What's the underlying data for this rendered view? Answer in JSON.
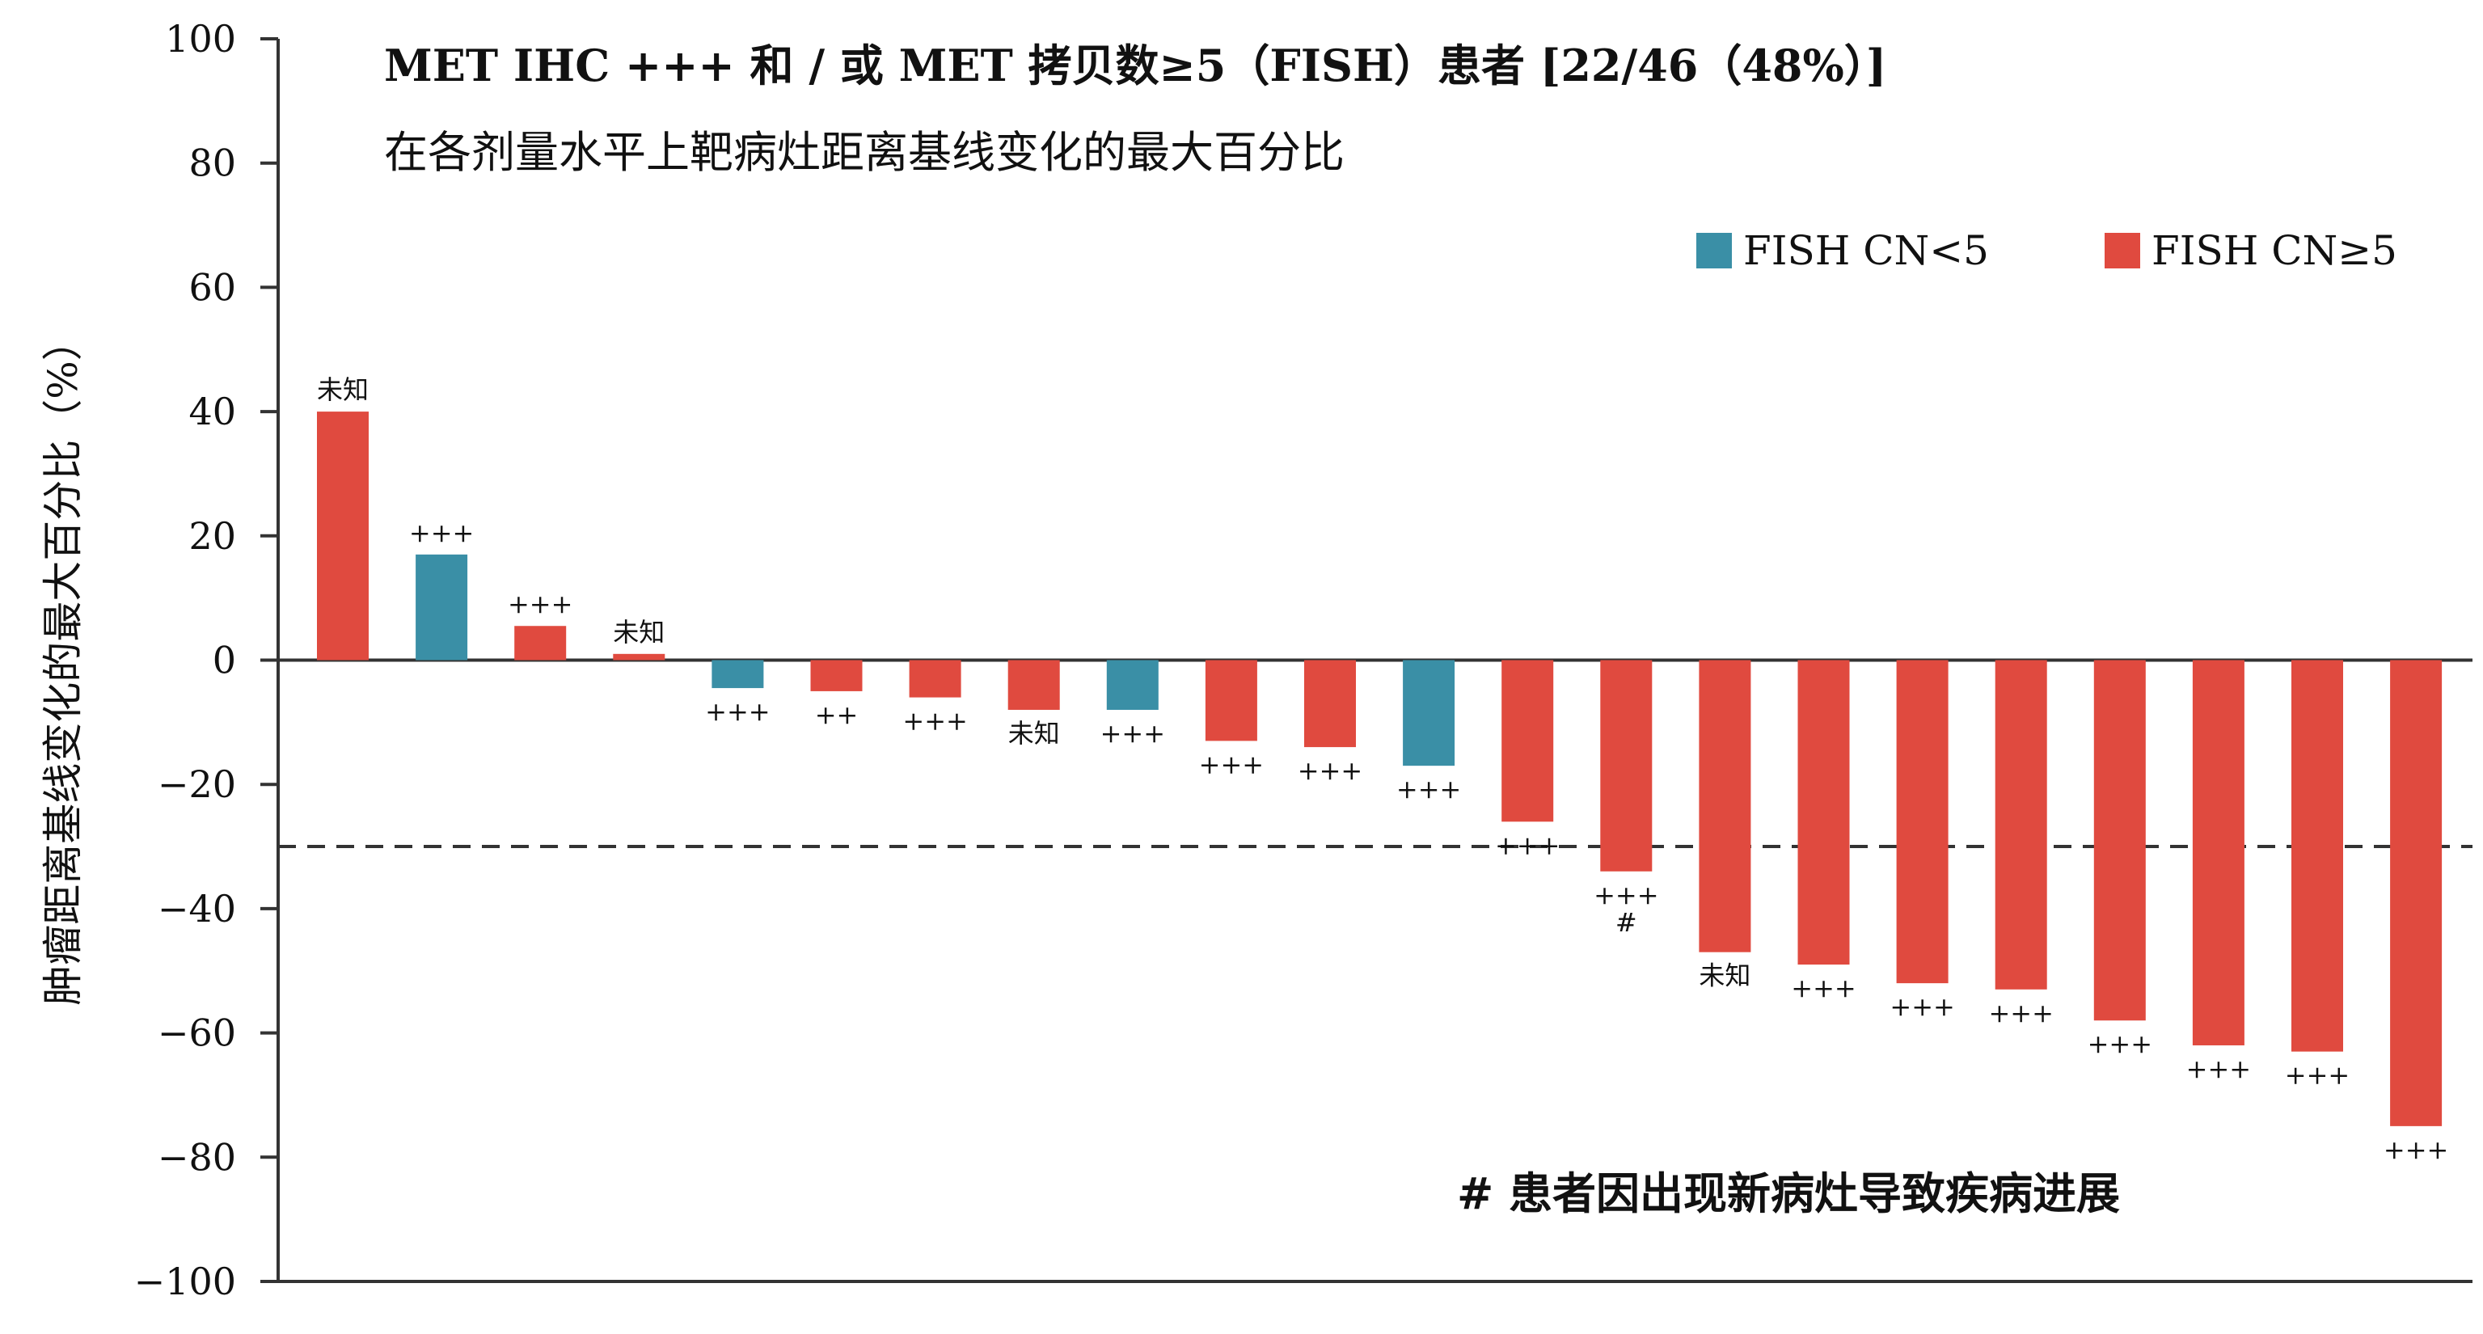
{
  "chart_data": {
    "type": "bar",
    "title": "MET IHC +++ 和 / 或 MET 拷贝数≥5（FISH）患者 [22/46（48%）]",
    "subtitle": "在各剂量水平上靶病灶距离基线变化的最大百分比",
    "ylabel": "肿瘤距离基线变化的最大百分比（%）",
    "xlabel": "",
    "ylim": [
      -100,
      100
    ],
    "yticks": [
      100,
      80,
      60,
      40,
      20,
      0,
      -20,
      -40,
      -60,
      -80,
      -100
    ],
    "ytick_labels": [
      "100",
      "80",
      "60",
      "40",
      "20",
      "0",
      "−20",
      "−40",
      "−60",
      "−80",
      "−100"
    ],
    "reference_line": -30,
    "legend": {
      "placement": "top-right",
      "items": [
        {
          "label": "FISH CN<5",
          "color": "#3a8fa6"
        },
        {
          "label": "FISH CN≥5",
          "color": "#e04a3f"
        }
      ]
    },
    "footnote": "# 患者因出现新病灶导致疾病进展",
    "bars": [
      {
        "value": 40,
        "group": "FISH CN≥5",
        "labels": [
          "未知"
        ]
      },
      {
        "value": 17,
        "group": "FISH CN<5",
        "labels": [
          "+++"
        ]
      },
      {
        "value": 5.5,
        "group": "FISH CN≥5",
        "labels": [
          "+++"
        ]
      },
      {
        "value": 1,
        "group": "FISH CN≥5",
        "labels": [
          "未知"
        ]
      },
      {
        "value": -4.5,
        "group": "FISH CN<5",
        "labels": [
          "+++"
        ]
      },
      {
        "value": -5,
        "group": "FISH CN≥5",
        "labels": [
          "++"
        ]
      },
      {
        "value": -6,
        "group": "FISH CN≥5",
        "labels": [
          "+++"
        ]
      },
      {
        "value": -8,
        "group": "FISH CN≥5",
        "labels": [
          "未知"
        ]
      },
      {
        "value": -8,
        "group": "FISH CN<5",
        "labels": [
          "+++"
        ]
      },
      {
        "value": -13,
        "group": "FISH CN≥5",
        "labels": [
          "+++"
        ]
      },
      {
        "value": -14,
        "group": "FISH CN≥5",
        "labels": [
          "+++"
        ]
      },
      {
        "value": -17,
        "group": "FISH CN<5",
        "labels": [
          "+++"
        ]
      },
      {
        "value": -26,
        "group": "FISH CN≥5",
        "labels": [
          "+++"
        ]
      },
      {
        "value": -34,
        "group": "FISH CN≥5",
        "labels": [
          "+++",
          "#"
        ]
      },
      {
        "value": -47,
        "group": "FISH CN≥5",
        "labels": [
          "未知"
        ]
      },
      {
        "value": -49,
        "group": "FISH CN≥5",
        "labels": [
          "+++"
        ]
      },
      {
        "value": -52,
        "group": "FISH CN≥5",
        "labels": [
          "+++"
        ]
      },
      {
        "value": -53,
        "group": "FISH CN≥5",
        "labels": [
          "+++"
        ]
      },
      {
        "value": -58,
        "group": "FISH CN≥5",
        "labels": [
          "+++"
        ]
      },
      {
        "value": -62,
        "group": "FISH CN≥5",
        "labels": [
          "+++"
        ]
      },
      {
        "value": -63,
        "group": "FISH CN≥5",
        "labels": [
          "+++"
        ]
      },
      {
        "value": -75,
        "group": "FISH CN≥5",
        "labels": [
          "+++"
        ]
      }
    ]
  }
}
